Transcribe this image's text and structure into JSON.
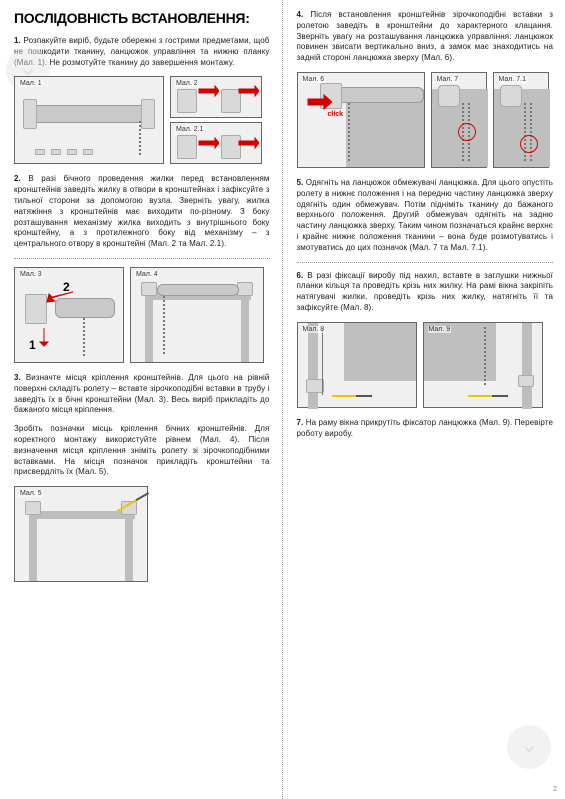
{
  "title": "ПОСЛІДОВНІСТЬ ВСТАНОВЛЕННЯ:",
  "left": {
    "p1": "1. Розпакуйте виріб, будьте обережні з гострими предметами, щоб не пошкодити тканину, ланцюжок управління та нижню планку (Мал. 1). Не розмотуйте тканину до завершення монтажу.",
    "p2": "2. В разі бічного проведення жилки перед встановленням кронштейнів заведіть жилку в отвори в кронштейнах і зафіксуйте з тильної сторони за допомогою вузла. Зверніть увагу, жилка натяжіння з кронштейнів має виходити по-різному. З боку розташування механізму жилка виходить з внутрішнього боку кронштейну, а з протилежного боку від механізму – з центрального отвору в кронштейні (Мал. 2 та Мал. 2.1).",
    "p3a": "3. Визначте місця кріплення кронштейнів. Для цього на рівній поверхні складіть ролету – вставте зірочкоподібні вставки в трубу і заведіть їх в бічні кронштейни (Мал. 3). Весь виріб прикладіть до бажаного місця кріплення.",
    "p3b": "Зробіть позначки місць кріплення бічних кронштейнів. Для коректного монтажу використуйте рівнем (Мал. 4). Після визначення місця кріплення зніміть ролету зі зірочкоподібними вставками. На місця позначок прикладіть кронштейни та присвердліть їх (Мал. 5).",
    "fig1": "Мал. 1",
    "fig2": "Мал. 2",
    "fig21": "Мал. 2.1",
    "fig3": "Мал. 3",
    "fig4": "Мал. 4",
    "fig5": "Мал. 5"
  },
  "right": {
    "p4": "4. Після встановлення кронштейнів зірочкоподібні вставки з ролетою заведіть в кронштейни до характерного клацання. Зверніть увагу на розташування ланцюжка управління: ланцюжок повинен звисати вертикально вниз, а замок має знаходитись на задній стороні ланцюжка зверху (Мал. 6).",
    "p5": "5. Одягніть на ланцюжок обмежувачі ланцюжка. Для цього опустіть ролету в нижнє положення і на передню частину ланцюжка зверху одягніть один обмежувач. Потім підніміть тканину до бажаного верхнього положення. Другий обмежувач одягніть на задню частину ланцюжка зверху. Таким чином позначаться крайнє верхнє і крайнє нижнє положення тканини – вона буде розмотуватись і змотуватись до цих позначок (Мал. 7 та Мал. 7.1).",
    "p6": "6. В разі фіксації виробу під нахил, вставте в заглушки нижньої планки кільця та проведіть крізь них жилку. На рамі вікна закріпіть натягувачі жилки, проведіть крізь них жилку, натягніть її та зафіксуйте (Мал. 8).",
    "p7": "7. На раму вікна прикрутіть фіксатор ланцюжка (Мал. 9). Перевірте роботу виробу.",
    "fig6": "Мал. 6",
    "fig7": "Мал. 7",
    "fig71": "Мал. 7.1",
    "fig8": "Мал. 8",
    "fig9": "Мал. 9",
    "click": "click",
    "pagenum": "2"
  },
  "colors": {
    "red": "#d40000",
    "grey": "#bfbfbf",
    "border": "#666666"
  }
}
